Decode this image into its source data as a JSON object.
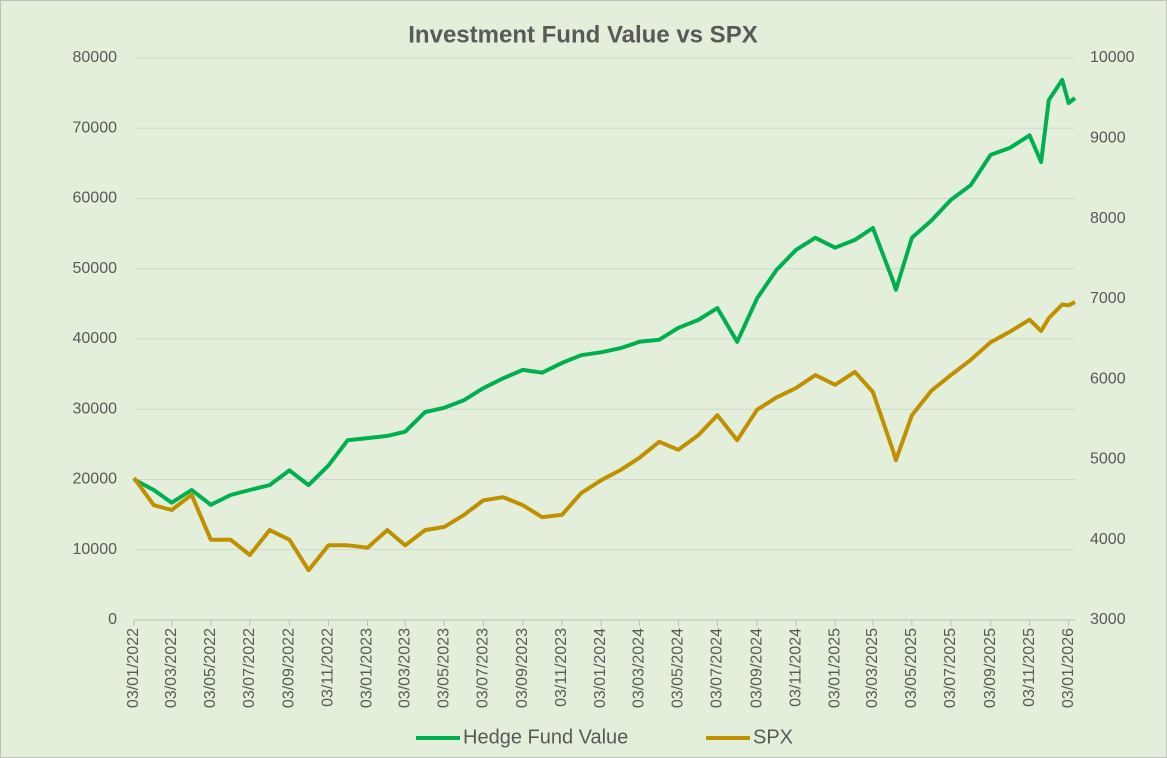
{
  "chart_data": {
    "type": "line",
    "title": "Investment Fund Value vs SPX",
    "x": [
      "03/01/2022",
      "03/02/2022",
      "03/03/2022",
      "03/04/2022",
      "03/05/2022",
      "03/06/2022",
      "03/07/2022",
      "03/08/2022",
      "03/09/2022",
      "03/10/2022",
      "03/11/2022",
      "03/12/2022",
      "03/01/2023",
      "03/02/2023",
      "03/03/2023",
      "03/04/2023",
      "03/05/2023",
      "03/06/2023",
      "03/07/2023",
      "03/08/2023",
      "03/09/2023",
      "03/10/2023",
      "03/11/2023",
      "03/12/2023",
      "03/01/2024",
      "03/02/2024",
      "03/03/2024",
      "03/04/2024",
      "03/05/2024",
      "03/06/2024",
      "03/07/2024",
      "03/08/2024",
      "03/09/2024",
      "03/10/2024",
      "03/11/2024",
      "03/12/2024",
      "03/01/2025",
      "03/02/2025",
      "03/03/2025",
      "03/04/2025",
      "08/04/2025",
      "03/05/2025",
      "03/06/2025",
      "03/07/2025",
      "03/08/2025",
      "03/09/2025",
      "03/10/2025",
      "03/11/2025",
      "21/11/2025",
      "03/12/2025",
      "24/12/2025",
      "03/01/2026",
      "13/01/2026"
    ],
    "series": [
      {
        "name": "Hedge Fund Value",
        "color": "#00b050",
        "axis": "y",
        "values": [
          20000,
          18500,
          16700,
          18500,
          16400,
          17800,
          18500,
          19200,
          21300,
          19200,
          22000,
          25600,
          25900,
          26200,
          26800,
          29600,
          30200,
          31300,
          33000,
          34400,
          35600,
          35200,
          36600,
          37700,
          38100,
          38700,
          39600,
          39900,
          41600,
          42700,
          44400,
          39600,
          45800,
          49800,
          52700,
          54400,
          53000,
          54100,
          55800,
          48400,
          47000,
          54400,
          56900,
          59800,
          61900,
          66200,
          67200,
          69000,
          65200,
          74000,
          76900,
          73600,
          74300
        ]
      },
      {
        "name": "SPX",
        "color": "#bf9000",
        "axis": "y2",
        "values": [
          4770,
          4430,
          4370,
          4560,
          4000,
          4000,
          3810,
          4120,
          4000,
          3620,
          3930,
          3930,
          3900,
          4120,
          3930,
          4120,
          4160,
          4310,
          4490,
          4530,
          4430,
          4280,
          4310,
          4580,
          4740,
          4870,
          5020,
          5220,
          5120,
          5300,
          5550,
          5240,
          5620,
          5770,
          5890,
          6050,
          5930,
          6090,
          5840,
          5120,
          4990,
          5550,
          5860,
          6050,
          6240,
          6460,
          6590,
          6740,
          6600,
          6760,
          6930,
          6920,
          6960
        ]
      }
    ],
    "xlim": [
      "03/01/2022",
      "13/01/2026"
    ],
    "xticks": [
      "03/01/2022",
      "03/03/2022",
      "03/05/2022",
      "03/07/2022",
      "03/09/2022",
      "03/11/2022",
      "03/01/2023",
      "03/03/2023",
      "03/05/2023",
      "03/07/2023",
      "03/09/2023",
      "03/11/2023",
      "03/01/2024",
      "03/03/2024",
      "03/05/2024",
      "03/07/2024",
      "03/09/2024",
      "03/11/2024",
      "03/01/2025",
      "03/03/2025",
      "03/05/2025",
      "03/07/2025",
      "03/09/2025",
      "03/11/2025",
      "03/01/2026"
    ],
    "ylim": [
      0,
      80000
    ],
    "yticks": [
      0,
      10000,
      20000,
      30000,
      40000,
      50000,
      60000,
      70000,
      80000
    ],
    "y2lim": [
      3000,
      10000
    ],
    "y2ticks": [
      3000,
      4000,
      5000,
      6000,
      7000,
      8000,
      9000,
      10000
    ],
    "grid": true,
    "legend": "bottom"
  }
}
